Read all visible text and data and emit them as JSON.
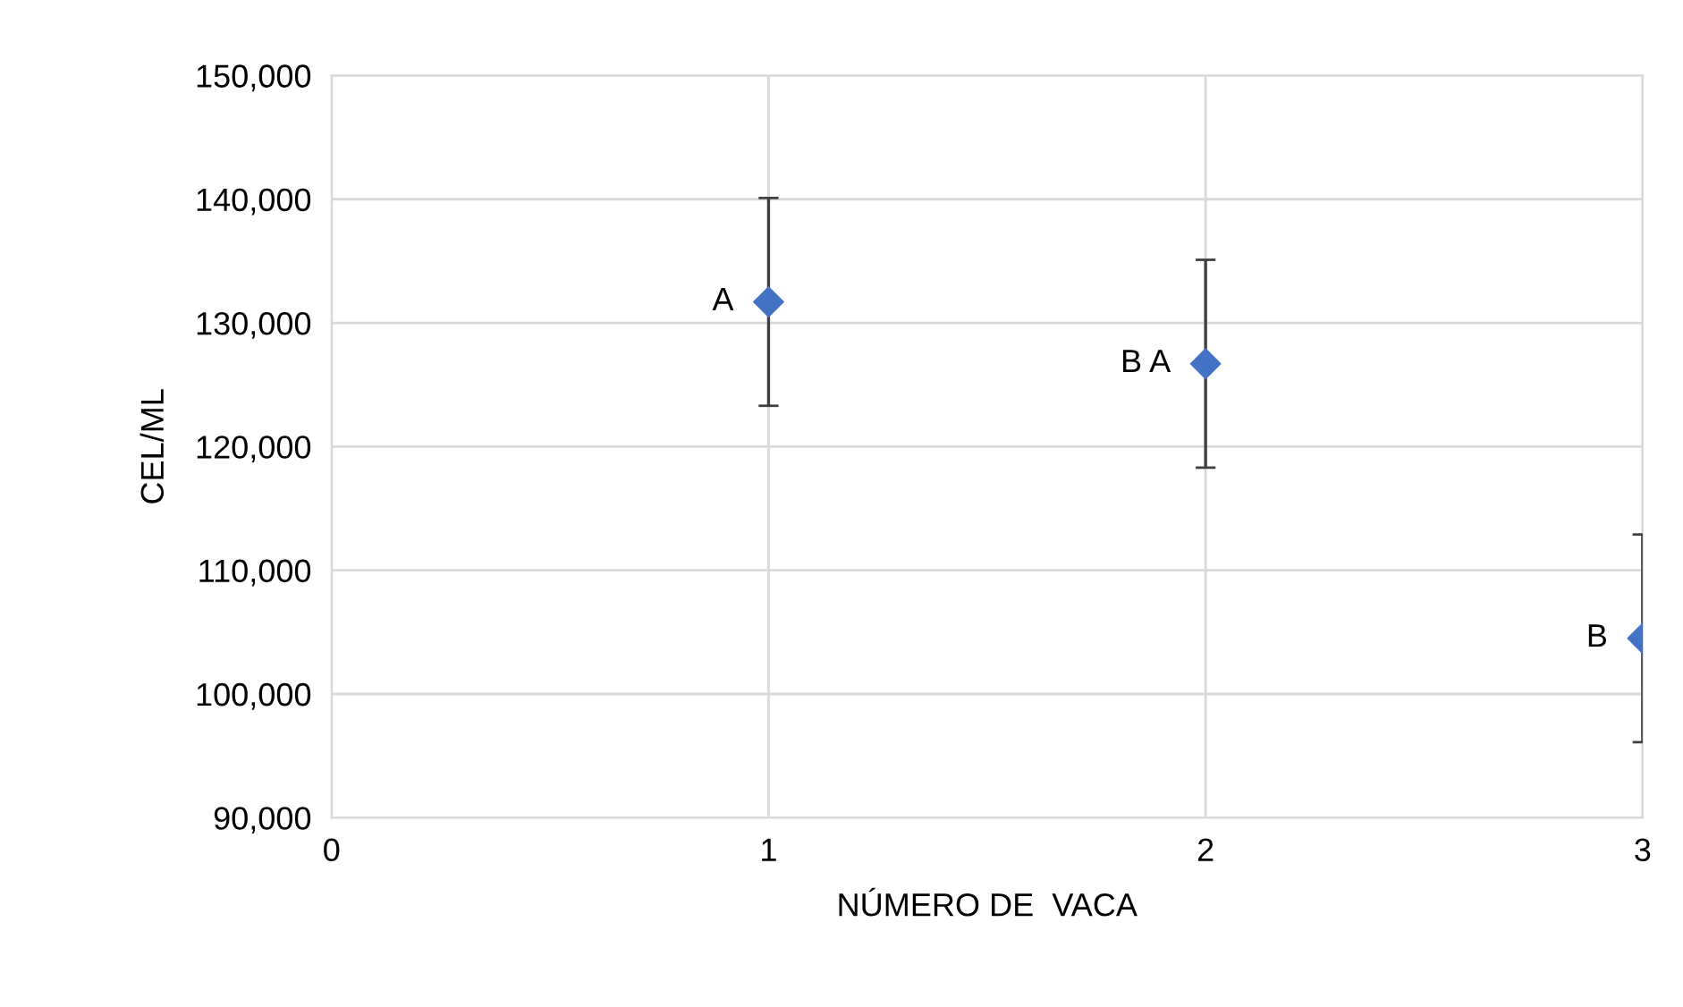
{
  "chart_data": {
    "type": "scatter",
    "xlabel": "NÚMERO DE  VACA",
    "ylabel": "CEL/ML",
    "x": [
      1,
      2,
      3
    ],
    "series": [
      {
        "color": "#4472c4",
        "values": [
          131700,
          126700,
          104500
        ],
        "errors": [
          8400,
          8400,
          8400
        ]
      }
    ],
    "xlim": [
      0,
      3
    ],
    "xticks": [
      0,
      1,
      2,
      3
    ],
    "ylim": [
      90000,
      150000
    ],
    "yticks": [
      {
        "value": 90000,
        "label": "90,000"
      },
      {
        "value": 100000,
        "label": "100,000"
      },
      {
        "value": 110000,
        "label": "110,000"
      },
      {
        "value": 120000,
        "label": "120,000"
      },
      {
        "value": 130000,
        "label": "130,000"
      },
      {
        "value": 140000,
        "label": "140,000"
      },
      {
        "value": 150000,
        "label": "150,000"
      }
    ],
    "grid": true,
    "marker": "diamond",
    "annotations": [
      {
        "text": "A",
        "x": 1,
        "y": 131700
      },
      {
        "text": "B A",
        "x": 2,
        "y": 126700
      },
      {
        "text": "B",
        "x": 3,
        "y": 104500
      }
    ]
  }
}
